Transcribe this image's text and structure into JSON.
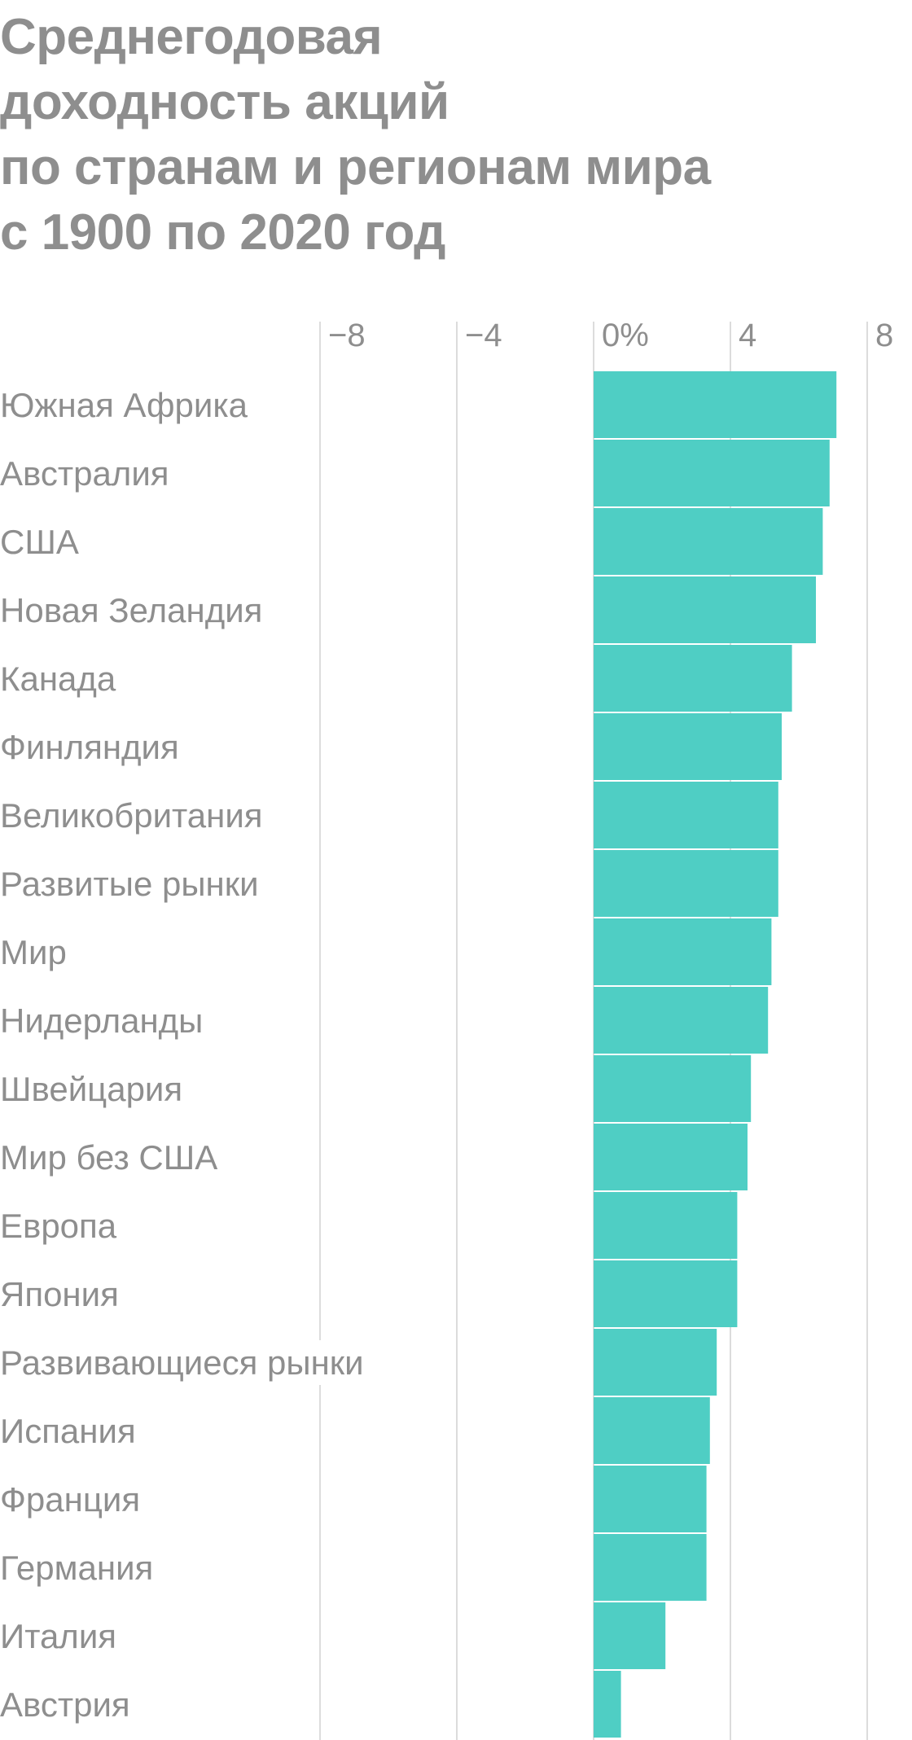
{
  "chart_data": {
    "type": "bar",
    "orientation": "horizontal",
    "title_lines": [
      "Среднегодовая",
      "доходность акций",
      "по странам и регионам мира",
      "с 1900 по 2020 год"
    ],
    "xlabel": "",
    "ylabel": "",
    "xlim": [
      -8,
      8
    ],
    "ticks": [
      -8,
      -4,
      0,
      4,
      8
    ],
    "tick_labels": [
      "−8",
      "−4",
      "0%",
      "4",
      "8"
    ],
    "grid": true,
    "legend": "none",
    "bar_color": "#4fcec4",
    "categories": [
      "Южная Африка",
      "Австралия",
      "США",
      "Новая Зеландия",
      "Канада",
      "Финляндия",
      "Великобритания",
      "Развитые рынки",
      "Мир",
      "Нидерланды",
      "Швейцария",
      "Мир без США",
      "Европа",
      "Япония",
      "Развивающиеся рынки",
      "Испания",
      "Франция",
      "Германия",
      "Италия",
      "Австрия"
    ],
    "values": [
      7.1,
      6.9,
      6.7,
      6.5,
      5.8,
      5.5,
      5.4,
      5.4,
      5.2,
      5.1,
      4.6,
      4.5,
      4.2,
      4.2,
      3.6,
      3.4,
      3.3,
      3.3,
      2.1,
      0.8
    ]
  }
}
